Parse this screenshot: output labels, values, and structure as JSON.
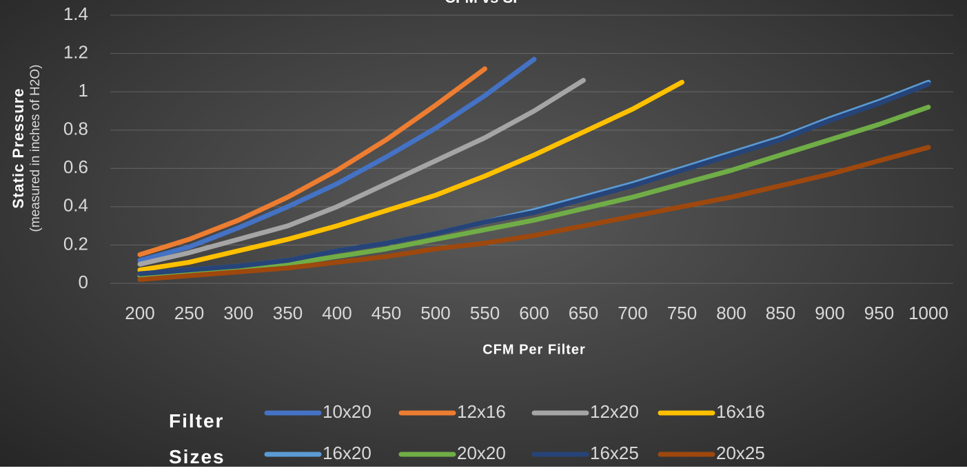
{
  "chart_data": {
    "type": "line",
    "title": "CFM vs SP",
    "y_label": "Static Pressure",
    "y_sublabel": "(measured in inches of H2O)",
    "x_label": "CFM Per Filter",
    "legend_title": "Filter Sizes",
    "categories": [
      "200",
      "250",
      "300",
      "350",
      "400",
      "450",
      "500",
      "550",
      "600",
      "650",
      "700",
      "750",
      "800",
      "850",
      "900",
      "950",
      "1000"
    ],
    "ylim": [
      0,
      1.4
    ],
    "yticks": [
      0,
      0.2,
      0.4,
      0.6,
      0.8,
      1,
      1.2,
      1.4
    ],
    "grid": true,
    "series": [
      {
        "name": "10x20",
        "color": "#4472c4",
        "values": [
          0.12,
          0.19,
          0.29,
          0.4,
          0.52,
          0.66,
          0.81,
          0.98,
          1.17,
          null,
          null,
          null,
          null,
          null,
          null,
          null,
          null
        ]
      },
      {
        "name": "12x16",
        "color": "#ed7d31",
        "values": [
          0.15,
          0.23,
          0.33,
          0.45,
          0.59,
          0.75,
          0.93,
          1.12,
          null,
          null,
          null,
          null,
          null,
          null,
          null,
          null,
          null
        ]
      },
      {
        "name": "12x20",
        "color": "#a5a5a5",
        "values": [
          0.1,
          0.16,
          0.23,
          0.3,
          0.4,
          0.52,
          0.64,
          0.76,
          0.9,
          1.06,
          null,
          null,
          null,
          null,
          null,
          null,
          null
        ]
      },
      {
        "name": "16x16",
        "color": "#ffc000",
        "values": [
          0.07,
          0.11,
          0.17,
          0.23,
          0.3,
          0.38,
          0.46,
          0.56,
          0.67,
          0.79,
          0.91,
          1.05,
          null,
          null,
          null,
          null,
          null
        ]
      },
      {
        "name": "16x20",
        "color": "#5b9bd5",
        "values": [
          0.05,
          0.07,
          0.09,
          0.12,
          0.17,
          0.21,
          0.26,
          0.32,
          0.38,
          0.45,
          0.52,
          0.6,
          0.68,
          0.76,
          0.86,
          0.95,
          1.05
        ]
      },
      {
        "name": "20x20",
        "color": "#70ad47",
        "values": [
          0.04,
          0.06,
          0.08,
          0.1,
          0.14,
          0.18,
          0.23,
          0.28,
          0.33,
          0.39,
          0.45,
          0.52,
          0.59,
          0.67,
          0.75,
          0.83,
          0.92
        ]
      },
      {
        "name": "16x25",
        "color": "#264478",
        "values": [
          0.05,
          0.07,
          0.09,
          0.12,
          0.17,
          0.21,
          0.26,
          0.32,
          0.37,
          0.44,
          0.51,
          0.59,
          0.67,
          0.75,
          0.85,
          0.94,
          1.04
        ]
      },
      {
        "name": "20x25",
        "color": "#9e480e",
        "values": [
          0.02,
          0.04,
          0.06,
          0.08,
          0.11,
          0.14,
          0.18,
          0.21,
          0.25,
          0.3,
          0.35,
          0.4,
          0.45,
          0.51,
          0.57,
          0.64,
          0.71
        ]
      }
    ]
  }
}
